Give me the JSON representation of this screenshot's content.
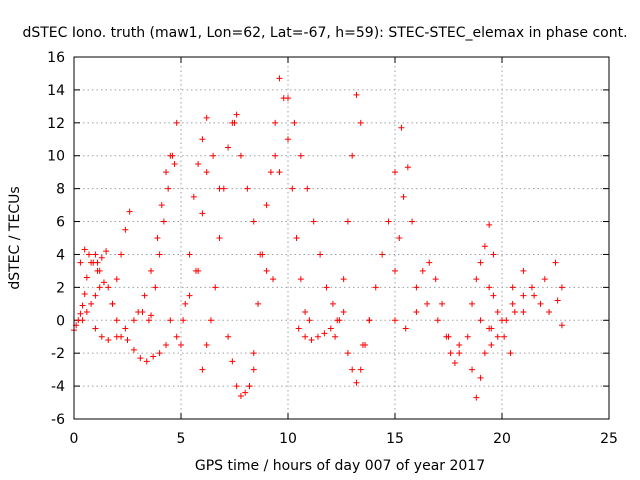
{
  "chart_data": {
    "type": "scatter",
    "title": "dSTEC Iono. truth (maw1, Lon=62, Lat=-67, h=59): STEC-STEC_elemax in phase cont.",
    "xlabel": "GPS time / hours of day 007 of year 2017",
    "ylabel": "dSTEC  / TECUs",
    "xlim": [
      0,
      25
    ],
    "ylim": [
      -6,
      16
    ],
    "xticks": [
      0,
      5,
      10,
      15,
      20,
      25
    ],
    "yticks": [
      -6,
      -4,
      -2,
      0,
      2,
      4,
      6,
      8,
      10,
      12,
      14,
      16
    ],
    "grid": true,
    "marker": "+",
    "color": "#ff0000",
    "series": [
      {
        "x": [
          0.0,
          0.1,
          0.2,
          0.3,
          0.4,
          0.5,
          0.6,
          0.8,
          1.0,
          1.1,
          1.2
        ],
        "y": [
          -0.6,
          -0.3,
          0.0,
          0.4,
          0.9,
          1.6,
          2.6,
          3.5,
          4.0,
          3.5,
          3.0
        ]
      },
      {
        "x": [
          0.4,
          0.6,
          0.8,
          1.0,
          1.2,
          1.4,
          1.6,
          1.8,
          2.0,
          2.2
        ],
        "y": [
          0.0,
          0.5,
          1.0,
          1.5,
          2.0,
          2.3,
          2.0,
          1.0,
          0.0,
          -1.0
        ]
      },
      {
        "x": [
          0.3,
          0.5,
          0.7,
          0.9,
          1.1,
          1.3,
          1.5
        ],
        "y": [
          3.5,
          4.3,
          4.0,
          3.5,
          3.0,
          3.8,
          4.2
        ]
      },
      {
        "x": [
          1.0,
          1.3,
          1.6,
          2.0,
          2.4,
          2.8,
          3.2,
          3.6
        ],
        "y": [
          -0.5,
          -1.0,
          -1.2,
          -1.0,
          -0.5,
          0.0,
          0.5,
          0.3
        ]
      },
      {
        "x": [
          1.8,
          2.0,
          2.2,
          2.4,
          2.6
        ],
        "y": [
          1.0,
          2.5,
          4.0,
          5.5,
          6.6
        ]
      },
      {
        "x": [
          2.5,
          2.8,
          3.1,
          3.4,
          3.7,
          4.0,
          4.3
        ],
        "y": [
          -1.2,
          -1.8,
          -2.3,
          -2.5,
          -2.2,
          -2.0,
          -1.5
        ]
      },
      {
        "x": [
          3.0,
          3.3,
          3.6,
          3.9,
          4.1,
          4.3,
          4.5,
          4.7
        ],
        "y": [
          0.5,
          1.5,
          3.0,
          5.0,
          7.0,
          9.0,
          10.0,
          9.5
        ]
      },
      {
        "x": [
          3.5,
          3.8,
          4.0,
          4.2,
          4.4,
          4.6,
          4.8
        ],
        "y": [
          0.0,
          2.0,
          4.0,
          6.0,
          8.0,
          10.0,
          12.0
        ]
      },
      {
        "x": [
          4.5,
          4.8,
          5.1,
          5.4,
          5.7
        ],
        "y": [
          0.0,
          -1.0,
          0.0,
          1.5,
          3.0
        ]
      },
      {
        "x": [
          5.0,
          5.2,
          5.4,
          5.6,
          5.8,
          6.0,
          6.2
        ],
        "y": [
          -1.5,
          1.0,
          4.0,
          7.5,
          9.5,
          11.0,
          12.3
        ]
      },
      {
        "x": [
          5.8,
          6.0,
          6.2,
          6.5,
          6.8
        ],
        "y": [
          3.0,
          6.5,
          9.0,
          10.0,
          8.0
        ]
      },
      {
        "x": [
          6.0,
          6.2,
          6.4,
          6.6,
          6.8,
          7.0,
          7.2,
          7.4,
          7.6
        ],
        "y": [
          -3.0,
          -1.5,
          0.0,
          2.0,
          5.0,
          8.0,
          10.5,
          12.0,
          12.5
        ]
      },
      {
        "x": [
          7.2,
          7.4,
          7.6,
          7.8,
          8.0,
          8.2,
          8.4
        ],
        "y": [
          -1.0,
          -2.5,
          -4.0,
          -4.6,
          -4.4,
          -4.0,
          -3.0
        ]
      },
      {
        "x": [
          7.5,
          7.8,
          8.1,
          8.4,
          8.7,
          9.0,
          9.3
        ],
        "y": [
          12.0,
          10.0,
          8.0,
          6.0,
          4.0,
          3.0,
          2.5
        ]
      },
      {
        "x": [
          8.2,
          8.4,
          8.6,
          8.8,
          9.0,
          9.2,
          9.4,
          9.6
        ],
        "y": [
          -4.0,
          -2.0,
          1.0,
          4.0,
          7.0,
          9.0,
          10.0,
          9.0
        ]
      },
      {
        "x": [
          9.4,
          9.6,
          9.8,
          10.0,
          10.2,
          10.4,
          10.6,
          10.8,
          11.0
        ],
        "y": [
          12.0,
          14.7,
          13.5,
          11.0,
          8.0,
          5.0,
          2.5,
          0.5,
          0.0
        ]
      },
      {
        "x": [
          10.0,
          10.3,
          10.6,
          10.9,
          11.2,
          11.5,
          11.8,
          12.1
        ],
        "y": [
          13.5,
          12.0,
          10.0,
          8.0,
          6.0,
          4.0,
          2.0,
          1.0
        ]
      },
      {
        "x": [
          10.5,
          10.8,
          11.1,
          11.4,
          11.7,
          12.0,
          12.3,
          12.6
        ],
        "y": [
          -0.5,
          -1.0,
          -1.2,
          -1.0,
          -0.8,
          -0.5,
          0.0,
          0.5
        ]
      },
      {
        "x": [
          12.2,
          12.4,
          12.6,
          12.8,
          13.0,
          13.2,
          13.4
        ],
        "y": [
          -1.0,
          0.0,
          2.5,
          6.0,
          10.0,
          13.7,
          12.0
        ]
      },
      {
        "x": [
          12.8,
          13.0,
          13.2,
          13.4,
          13.6,
          13.8
        ],
        "y": [
          -2.0,
          -3.0,
          -3.8,
          -3.0,
          -1.5,
          0.0
        ]
      },
      {
        "x": [
          13.5,
          13.8,
          14.1,
          14.4,
          14.7,
          15.0,
          15.3
        ],
        "y": [
          -1.5,
          0.0,
          2.0,
          4.0,
          6.0,
          9.0,
          11.7
        ]
      },
      {
        "x": [
          15.0,
          15.2,
          15.4,
          15.6,
          15.8
        ],
        "y": [
          3.0,
          5.0,
          7.5,
          9.3,
          6.0
        ]
      },
      {
        "x": [
          15.0,
          15.5,
          16.0,
          16.5,
          17.0,
          17.5,
          18.0
        ],
        "y": [
          0.0,
          -0.5,
          0.5,
          1.0,
          0.0,
          -1.0,
          -1.5
        ]
      },
      {
        "x": [
          16.0,
          16.3,
          16.6,
          16.9,
          17.2
        ],
        "y": [
          2.0,
          3.0,
          3.5,
          2.5,
          1.0
        ]
      },
      {
        "x": [
          17.4,
          17.6,
          17.8,
          18.0
        ],
        "y": [
          -1.0,
          -2.0,
          -2.6,
          -2.0
        ]
      },
      {
        "x": [
          18.4,
          18.6,
          18.8,
          19.0,
          19.2,
          19.4
        ],
        "y": [
          -1.0,
          -3.0,
          -4.7,
          -3.5,
          -2.0,
          -0.5
        ]
      },
      {
        "x": [
          18.6,
          18.8,
          19.0,
          19.2,
          19.4,
          19.6
        ],
        "y": [
          1.0,
          2.5,
          3.5,
          4.5,
          5.8,
          4.0
        ]
      },
      {
        "x": [
          19.0,
          19.5,
          20.0,
          20.5,
          21.0
        ],
        "y": [
          0.0,
          -1.5,
          0.0,
          1.0,
          0.5
        ]
      },
      {
        "x": [
          20.5,
          21.0,
          21.5,
          22.0,
          22.5,
          22.8
        ],
        "y": [
          2.0,
          3.0,
          1.5,
          2.5,
          3.5,
          2.0
        ]
      },
      {
        "x": [
          19.5,
          19.8,
          20.2,
          20.6,
          21.0,
          21.4,
          21.8,
          22.2,
          22.6,
          22.8
        ],
        "y": [
          -0.5,
          -1.0,
          0.0,
          0.5,
          1.5,
          2.0,
          1.0,
          0.5,
          1.2,
          -0.3
        ]
      },
      {
        "x": [
          19.4,
          19.6,
          19.8,
          20.1,
          20.4
        ],
        "y": [
          2.0,
          1.5,
          0.5,
          -1.0,
          -2.0
        ]
      }
    ]
  }
}
